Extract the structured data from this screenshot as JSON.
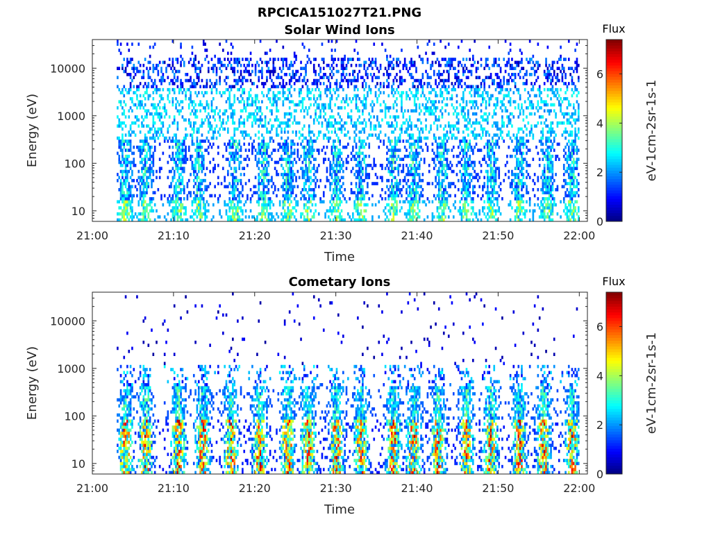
{
  "figure": {
    "filename": "RPCICA151027T21.PNG"
  },
  "chart_data": [
    {
      "type": "heatmap",
      "title": "Solar Wind Ions",
      "xlabel": "Time",
      "ylabel": "Energy (eV)",
      "x_ticks": [
        "21:00",
        "21:10",
        "21:20",
        "21:30",
        "21:40",
        "21:50",
        "22:00"
      ],
      "y_scale": "log",
      "y_ticks": [
        "10",
        "100",
        "1000",
        "10000"
      ],
      "ylim": [
        6,
        40000
      ],
      "data_x_range": [
        "21:03",
        "22:00"
      ],
      "colorbar": {
        "title": "Flux",
        "label": "eV-1cm-2sr-1s-1",
        "range": [
          0,
          7.4
        ],
        "ticks": [
          "0",
          "2",
          "4",
          "6"
        ],
        "colormap": "jet"
      },
      "bursts_minutes": [
        4,
        6.5,
        10.5,
        13,
        17.5,
        21,
        24,
        26.5,
        30,
        33,
        37,
        39.5,
        43,
        46,
        49,
        52.5,
        56,
        59
      ]
    },
    {
      "type": "heatmap",
      "title": "Cometary Ions",
      "xlabel": "Time",
      "ylabel": "Energy (eV)",
      "x_ticks": [
        "21:00",
        "21:10",
        "21:20",
        "21:30",
        "21:40",
        "21:50",
        "22:00"
      ],
      "y_scale": "log",
      "y_ticks": [
        "10",
        "100",
        "1000",
        "10000"
      ],
      "ylim": [
        6,
        40000
      ],
      "data_x_range": [
        "21:03",
        "22:00"
      ],
      "colorbar": {
        "title": "Flux",
        "label": "eV-1cm-2sr-1s-1",
        "range": [
          0,
          7.4
        ],
        "ticks": [
          "0",
          "2",
          "4",
          "6"
        ],
        "colormap": "jet"
      },
      "bursts_minutes": [
        4,
        6.5,
        10.5,
        13.5,
        17,
        20.5,
        24,
        26.5,
        30,
        33,
        37,
        39.5,
        42.5,
        46,
        49,
        52.5,
        55.5,
        59
      ]
    }
  ]
}
